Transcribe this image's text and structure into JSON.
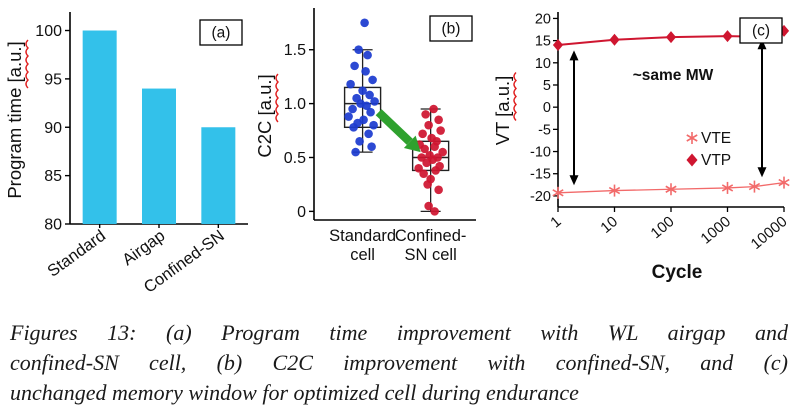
{
  "figure": {
    "squiggle_color": "#e02020",
    "caption": "Figures 13: (a) Program time improvement with WL airgap and confined-SN cell, (b) C2C improvement with confined-SN, and (c) unchanged memory window for optimized cell during endurance",
    "caption_lines": [
      "Figures 13: (a) Program time improvement with WL airgap and",
      "confined-SN cell, (b) C2C improvement with confined-SN, and (c)",
      "unchanged memory window for optimized cell during endurance"
    ]
  },
  "chart_data": [
    {
      "type": "bar",
      "panel_label": "(a)",
      "ylabel": "Program time [a.u.]",
      "categories": [
        "Standard",
        "Airgap",
        "Confined-SN"
      ],
      "values": [
        100,
        94,
        90
      ],
      "ylim": [
        80,
        101.5
      ],
      "yticks": [
        80,
        85,
        90,
        95,
        100
      ],
      "bar_color": "#33c1ea"
    },
    {
      "type": "box-scatter",
      "panel_label": "(b)",
      "ylabel": "C2C [a.u.]",
      "ylim": [
        -0.08,
        1.85
      ],
      "yticks": [
        0,
        0.5,
        1.0,
        1.5
      ],
      "arrow_color": "#2fa12e",
      "groups": [
        {
          "label_lines": [
            "Standard",
            "cell"
          ],
          "color": "#1c3bd0",
          "box": {
            "q1": 0.78,
            "median": 1.0,
            "q3": 1.15,
            "whisker_low": 0.55,
            "whisker_high": 1.5
          },
          "points": [
            [
              2,
              1.75
            ],
            [
              -4,
              1.5
            ],
            [
              5,
              1.45
            ],
            [
              -8,
              1.35
            ],
            [
              3,
              1.3
            ],
            [
              10,
              1.22
            ],
            [
              -12,
              1.18
            ],
            [
              0,
              1.12
            ],
            [
              7,
              1.08
            ],
            [
              -6,
              1.05
            ],
            [
              12,
              1.02
            ],
            [
              -2,
              1.0
            ],
            [
              4,
              0.98
            ],
            [
              -10,
              0.95
            ],
            [
              8,
              0.92
            ],
            [
              -14,
              0.88
            ],
            [
              1,
              0.85
            ],
            [
              -5,
              0.82
            ],
            [
              11,
              0.8
            ],
            [
              -9,
              0.78
            ],
            [
              6,
              0.72
            ],
            [
              -3,
              0.65
            ],
            [
              9,
              0.6
            ],
            [
              -7,
              0.55
            ]
          ]
        },
        {
          "label_lines": [
            "Confined-",
            "SN cell"
          ],
          "color": "#cf1630",
          "box": {
            "q1": 0.38,
            "median": 0.5,
            "q3": 0.65,
            "whisker_low": 0.0,
            "whisker_high": 0.95
          },
          "points": [
            [
              3,
              0.95
            ],
            [
              -5,
              0.9
            ],
            [
              8,
              0.85
            ],
            [
              -2,
              0.8
            ],
            [
              10,
              0.75
            ],
            [
              -8,
              0.72
            ],
            [
              1,
              0.68
            ],
            [
              6,
              0.65
            ],
            [
              -11,
              0.62
            ],
            [
              4,
              0.6
            ],
            [
              -6,
              0.58
            ],
            [
              12,
              0.55
            ],
            [
              -1,
              0.52
            ],
            [
              7,
              0.5
            ],
            [
              -9,
              0.5
            ],
            [
              2,
              0.48
            ],
            [
              -4,
              0.45
            ],
            [
              9,
              0.42
            ],
            [
              -12,
              0.4
            ],
            [
              5,
              0.38
            ],
            [
              -7,
              0.35
            ],
            [
              0,
              0.3
            ],
            [
              -3,
              0.25
            ],
            [
              8,
              0.2
            ],
            [
              -2,
              0.05
            ],
            [
              4,
              0.0
            ]
          ]
        }
      ]
    },
    {
      "type": "line",
      "panel_label": "(c)",
      "xlabel": "Cycle",
      "ylabel": "VT [a.u.]",
      "x_scale": "log",
      "x_ticks": [
        1,
        10,
        100,
        1000,
        10000
      ],
      "ylim": [
        -22.5,
        21
      ],
      "yticks": [
        -20,
        -15,
        -10,
        -5,
        0,
        5,
        10,
        15,
        20
      ],
      "annotation": "~same MW",
      "series": [
        {
          "name": "VTE",
          "marker": "asterisk",
          "color": "#f26a6a",
          "x": [
            1,
            10,
            100,
            1000,
            3000,
            10000
          ],
          "values": [
            -19.3,
            -18.8,
            -18.5,
            -18.2,
            -17.9,
            -17
          ]
        },
        {
          "name": "VTP",
          "marker": "diamond",
          "color": "#cf1630",
          "x": [
            1,
            10,
            100,
            1000,
            3000,
            10000
          ],
          "values": [
            14,
            15.2,
            15.8,
            16,
            15.9,
            17.2
          ]
        }
      ]
    }
  ]
}
